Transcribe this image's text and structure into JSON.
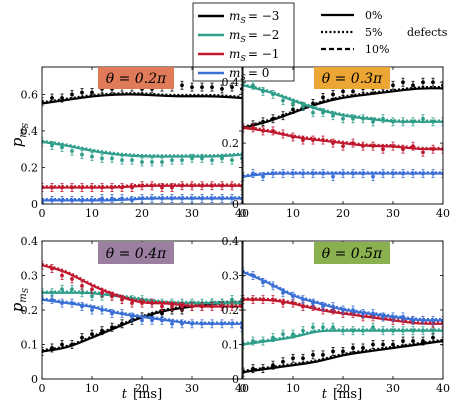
{
  "figure": {
    "ylabel": "p",
    "ylabel_sub": "m",
    "ylabel_subsub": "S",
    "xlabel_var": "t",
    "xlabel_unit": "[ms]",
    "legend_series": [
      {
        "label_prefix": "m",
        "label_sub": "S",
        "label_value": "= −3",
        "color": "#000000"
      },
      {
        "label_prefix": "m",
        "label_sub": "S",
        "label_value": "= −2",
        "color": "#2e9e8a"
      },
      {
        "label_prefix": "m",
        "label_sub": "S",
        "label_value": "= −1",
        "color": "#c0182e"
      },
      {
        "label_prefix": "m",
        "label_sub": "S",
        "label_value": "= 0",
        "color": "#3a6fd6"
      }
    ],
    "legend_defects": {
      "title": "defects",
      "items": [
        {
          "label": "0%",
          "style": "solid"
        },
        {
          "label": "5%",
          "style": "dotted"
        },
        {
          "label": "10%",
          "style": "dashed"
        }
      ]
    }
  },
  "chart_data": [
    {
      "type": "line",
      "title": "θ = 0.2π",
      "title_bg": "#e07b5a",
      "xlim": [
        0,
        40
      ],
      "ylim": [
        0,
        0.75
      ],
      "xticks": [
        0,
        10,
        20,
        30,
        40
      ],
      "yticks": [
        0,
        0.2,
        0.4,
        0.6
      ],
      "series": [
        {
          "color": "#000000",
          "x": [
            0,
            5,
            10,
            15,
            20,
            25,
            30,
            35,
            40
          ],
          "y": [
            0.55,
            0.57,
            0.59,
            0.6,
            0.6,
            0.59,
            0.59,
            0.59,
            0.58
          ],
          "points": [
            0.56,
            0.58,
            0.58,
            0.6,
            0.61,
            0.61,
            0.63,
            0.63,
            0.64,
            0.64,
            0.63,
            0.63,
            0.64,
            0.64,
            0.65,
            0.64,
            0.64,
            0.64,
            0.63,
            0.64,
            0.63
          ]
        },
        {
          "color": "#2e9e8a",
          "x": [
            0,
            5,
            10,
            15,
            20,
            25,
            30,
            35,
            40
          ],
          "y": [
            0.34,
            0.32,
            0.29,
            0.27,
            0.26,
            0.26,
            0.26,
            0.26,
            0.27
          ],
          "points": [
            0.34,
            0.32,
            0.31,
            0.29,
            0.27,
            0.26,
            0.25,
            0.25,
            0.24,
            0.24,
            0.23,
            0.23,
            0.23,
            0.24,
            0.24,
            0.25,
            0.25,
            0.24,
            0.25,
            0.24,
            0.25
          ]
        },
        {
          "color": "#c0182e",
          "x": [
            0,
            5,
            10,
            15,
            20,
            25,
            30,
            35,
            40
          ],
          "y": [
            0.09,
            0.09,
            0.09,
            0.09,
            0.1,
            0.1,
            0.1,
            0.1,
            0.1
          ],
          "points": [
            0.09,
            0.09,
            0.09,
            0.09,
            0.09,
            0.09,
            0.09,
            0.09,
            0.09,
            0.09,
            0.1,
            0.1,
            0.09,
            0.09,
            0.1,
            0.1,
            0.1,
            0.1,
            0.1,
            0.1,
            0.1
          ]
        },
        {
          "color": "#3a6fd6",
          "x": [
            0,
            5,
            10,
            15,
            20,
            25,
            30,
            35,
            40
          ],
          "y": [
            0.02,
            0.02,
            0.02,
            0.02,
            0.03,
            0.03,
            0.03,
            0.03,
            0.03
          ],
          "points": [
            0.01,
            0.02,
            0.02,
            0.02,
            0.02,
            0.02,
            0.03,
            0.03,
            0.03,
            0.02,
            0.03,
            0.03,
            0.03,
            0.03,
            0.03,
            0.03,
            0.03,
            0.03,
            0.03,
            0.03,
            0.03
          ]
        }
      ]
    },
    {
      "type": "line",
      "title": "θ = 0.3π",
      "title_bg": "#eba633",
      "xlim": [
        0,
        40
      ],
      "ylim": [
        0,
        0.45
      ],
      "xticks": [
        0,
        10,
        20,
        30,
        40
      ],
      "yticks": [
        0,
        0.2,
        0.4
      ],
      "series": [
        {
          "color": "#000000",
          "x": [
            0,
            5,
            10,
            15,
            20,
            25,
            30,
            35,
            40
          ],
          "y": [
            0.25,
            0.27,
            0.3,
            0.33,
            0.35,
            0.36,
            0.37,
            0.38,
            0.38
          ],
          "points": [
            0.25,
            0.26,
            0.27,
            0.28,
            0.29,
            0.31,
            0.32,
            0.33,
            0.35,
            0.36,
            0.37,
            0.37,
            0.38,
            0.38,
            0.39,
            0.39,
            0.4,
            0.39,
            0.4,
            0.4,
            0.39
          ]
        },
        {
          "color": "#2e9e8a",
          "x": [
            0,
            5,
            10,
            15,
            20,
            25,
            30,
            35,
            40
          ],
          "y": [
            0.39,
            0.37,
            0.34,
            0.31,
            0.29,
            0.28,
            0.27,
            0.27,
            0.27
          ],
          "points": [
            0.39,
            0.39,
            0.37,
            0.36,
            0.34,
            0.33,
            0.32,
            0.3,
            0.3,
            0.29,
            0.28,
            0.28,
            0.28,
            0.27,
            0.28,
            0.27,
            0.27,
            0.27,
            0.28,
            0.27,
            0.27
          ]
        },
        {
          "color": "#c0182e",
          "x": [
            0,
            5,
            10,
            15,
            20,
            25,
            30,
            35,
            40
          ],
          "y": [
            0.25,
            0.24,
            0.22,
            0.21,
            0.2,
            0.19,
            0.19,
            0.18,
            0.18
          ],
          "points": [
            0.25,
            0.25,
            0.24,
            0.24,
            0.23,
            0.22,
            0.21,
            0.21,
            0.21,
            0.2,
            0.19,
            0.2,
            0.19,
            0.19,
            0.18,
            0.19,
            0.18,
            0.19,
            0.17,
            0.18,
            0.18
          ]
        },
        {
          "color": "#3a6fd6",
          "x": [
            0,
            5,
            10,
            15,
            20,
            25,
            30,
            35,
            40
          ],
          "y": [
            0.09,
            0.1,
            0.1,
            0.1,
            0.1,
            0.1,
            0.1,
            0.1,
            0.1
          ],
          "points": [
            0.09,
            0.1,
            0.09,
            0.1,
            0.1,
            0.1,
            0.1,
            0.1,
            0.1,
            0.09,
            0.1,
            0.1,
            0.1,
            0.09,
            0.1,
            0.1,
            0.1,
            0.1,
            0.1,
            0.1,
            0.1
          ]
        }
      ]
    },
    {
      "type": "line",
      "title": "θ = 0.4π",
      "title_bg": "#9a7fa0",
      "xlim": [
        0,
        40
      ],
      "ylim": [
        0,
        0.4
      ],
      "xticks": [
        0,
        10,
        20,
        30,
        40
      ],
      "yticks": [
        0,
        0.1,
        0.2,
        0.3,
        0.4
      ],
      "series": [
        {
          "color": "#000000",
          "x": [
            0,
            5,
            10,
            15,
            20,
            25,
            30,
            35,
            40
          ],
          "y": [
            0.08,
            0.09,
            0.12,
            0.15,
            0.18,
            0.2,
            0.21,
            0.22,
            0.22
          ],
          "points": [
            0.08,
            0.09,
            0.1,
            0.1,
            0.12,
            0.13,
            0.14,
            0.15,
            0.16,
            0.17,
            0.18,
            0.18,
            0.19,
            0.2,
            0.2,
            0.21,
            0.21,
            0.22,
            0.22,
            0.22,
            0.22
          ]
        },
        {
          "color": "#2e9e8a",
          "x": [
            0,
            5,
            10,
            15,
            20,
            25,
            30,
            35,
            40
          ],
          "y": [
            0.25,
            0.25,
            0.25,
            0.24,
            0.23,
            0.22,
            0.22,
            0.22,
            0.22
          ],
          "points": [
            0.25,
            0.25,
            0.26,
            0.26,
            0.25,
            0.24,
            0.24,
            0.24,
            0.23,
            0.23,
            0.23,
            0.22,
            0.22,
            0.22,
            0.22,
            0.22,
            0.22,
            0.22,
            0.22,
            0.23,
            0.23
          ]
        },
        {
          "color": "#c0182e",
          "x": [
            0,
            5,
            10,
            15,
            20,
            25,
            30,
            35,
            40
          ],
          "y": [
            0.33,
            0.31,
            0.27,
            0.24,
            0.22,
            0.22,
            0.21,
            0.21,
            0.21
          ],
          "points": [
            0.33,
            0.32,
            0.3,
            0.29,
            0.27,
            0.26,
            0.25,
            0.24,
            0.23,
            0.22,
            0.22,
            0.22,
            0.21,
            0.21,
            0.21,
            0.21,
            0.21,
            0.21,
            0.21,
            0.21,
            0.21
          ]
        },
        {
          "color": "#3a6fd6",
          "x": [
            0,
            5,
            10,
            15,
            20,
            25,
            30,
            35,
            40
          ],
          "y": [
            0.23,
            0.22,
            0.21,
            0.19,
            0.18,
            0.17,
            0.16,
            0.16,
            0.16
          ],
          "points": [
            0.23,
            0.23,
            0.22,
            0.22,
            0.21,
            0.2,
            0.2,
            0.19,
            0.19,
            0.18,
            0.17,
            0.17,
            0.17,
            0.16,
            0.16,
            0.16,
            0.16,
            0.16,
            0.16,
            0.16,
            0.15
          ]
        }
      ]
    },
    {
      "type": "line",
      "title": "θ = 0.5π",
      "title_bg": "#8ab04f",
      "xlim": [
        0,
        40
      ],
      "ylim": [
        0,
        0.4
      ],
      "xticks": [
        0,
        10,
        20,
        30,
        40
      ],
      "yticks": [
        0,
        0.1,
        0.2,
        0.3,
        0.4
      ],
      "series": [
        {
          "color": "#000000",
          "x": [
            0,
            5,
            10,
            15,
            20,
            25,
            30,
            35,
            40
          ],
          "y": [
            0.02,
            0.03,
            0.04,
            0.05,
            0.07,
            0.08,
            0.09,
            0.1,
            0.11
          ],
          "points": [
            0.02,
            0.03,
            0.03,
            0.04,
            0.05,
            0.06,
            0.06,
            0.07,
            0.07,
            0.08,
            0.08,
            0.09,
            0.09,
            0.1,
            0.1,
            0.1,
            0.11,
            0.11,
            0.11,
            0.12,
            0.11
          ]
        },
        {
          "color": "#2e9e8a",
          "x": [
            0,
            5,
            10,
            15,
            20,
            25,
            30,
            35,
            40
          ],
          "y": [
            0.1,
            0.11,
            0.12,
            0.14,
            0.14,
            0.14,
            0.14,
            0.14,
            0.14
          ],
          "points": [
            0.1,
            0.11,
            0.11,
            0.12,
            0.13,
            0.13,
            0.14,
            0.15,
            0.15,
            0.15,
            0.14,
            0.14,
            0.14,
            0.15,
            0.14,
            0.14,
            0.14,
            0.14,
            0.14,
            0.14,
            0.14
          ]
        },
        {
          "color": "#c0182e",
          "x": [
            0,
            5,
            10,
            15,
            20,
            25,
            30,
            35,
            40
          ],
          "y": [
            0.23,
            0.23,
            0.22,
            0.2,
            0.19,
            0.18,
            0.17,
            0.16,
            0.16
          ],
          "points": [
            0.23,
            0.23,
            0.23,
            0.23,
            0.22,
            0.22,
            0.21,
            0.21,
            0.2,
            0.2,
            0.19,
            0.19,
            0.18,
            0.18,
            0.18,
            0.17,
            0.17,
            0.17,
            0.17,
            0.16,
            0.16
          ]
        },
        {
          "color": "#3a6fd6",
          "x": [
            0,
            5,
            10,
            15,
            20,
            25,
            30,
            35,
            40
          ],
          "y": [
            0.31,
            0.28,
            0.24,
            0.22,
            0.2,
            0.19,
            0.18,
            0.17,
            0.17
          ],
          "points": [
            0.31,
            0.3,
            0.28,
            0.27,
            0.25,
            0.24,
            0.23,
            0.22,
            0.21,
            0.21,
            0.2,
            0.2,
            0.19,
            0.19,
            0.18,
            0.18,
            0.18,
            0.17,
            0.17,
            0.17,
            0.17
          ]
        }
      ]
    }
  ]
}
